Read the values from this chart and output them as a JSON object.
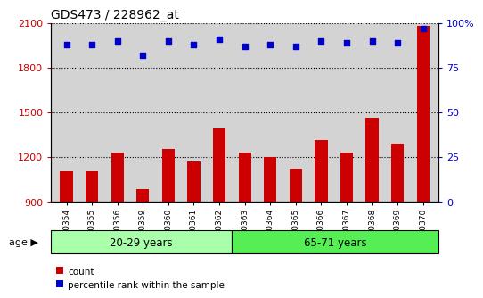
{
  "title": "GDS473 / 228962_at",
  "samples": [
    "GSM10354",
    "GSM10355",
    "GSM10356",
    "GSM10359",
    "GSM10360",
    "GSM10361",
    "GSM10362",
    "GSM10363",
    "GSM10364",
    "GSM10365",
    "GSM10366",
    "GSM10367",
    "GSM10368",
    "GSM10369",
    "GSM10370"
  ],
  "counts": [
    1100,
    1100,
    1230,
    980,
    1250,
    1170,
    1390,
    1230,
    1200,
    1120,
    1310,
    1230,
    1460,
    1290,
    2080
  ],
  "percentiles": [
    88,
    88,
    90,
    82,
    90,
    88,
    91,
    87,
    88,
    87,
    90,
    89,
    90,
    89,
    97
  ],
  "group1_label": "20-29 years",
  "group2_label": "65-71 years",
  "group1_count": 7,
  "group2_count": 8,
  "bar_color": "#cc0000",
  "dot_color": "#0000cc",
  "ylim_left": [
    900,
    2100
  ],
  "ylim_right": [
    0,
    100
  ],
  "yticks_left": [
    900,
    1200,
    1500,
    1800,
    2100
  ],
  "yticks_right": [
    0,
    25,
    50,
    75,
    100
  ],
  "ytick_labels_right": [
    "0",
    "25",
    "50",
    "75",
    "100%"
  ],
  "bar_baseline": 900,
  "plot_bg": "#d3d3d3",
  "group1_bg": "#aaffaa",
  "group2_bg": "#55ee55",
  "legend_count_label": "count",
  "legend_pct_label": "percentile rank within the sample",
  "age_label": "age"
}
